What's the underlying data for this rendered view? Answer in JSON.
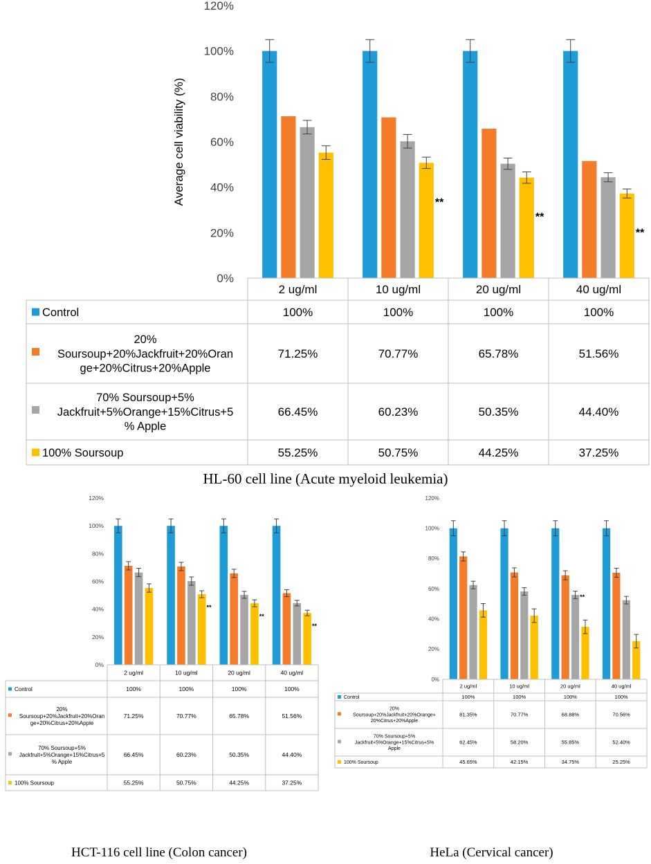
{
  "captions": {
    "main": "HL-60 cell line (Acute myeloid leukemia)",
    "left": "HCT-116 cell line (Colon cancer)",
    "right": "HeLa (Cervical cancer)"
  },
  "colors": {
    "control": "#1f9bd7",
    "blend20": "#f47b2a",
    "blend70": "#a6a6a6",
    "soursoup100": "#ffc000",
    "grid": "#bfbfbf",
    "error": "#404040"
  },
  "chart_data": [
    {
      "id": "hl60",
      "type": "bar",
      "title": "HL-60 cell line (Acute myeloid leukemia)",
      "ylabel": "Average cell viability (%)",
      "xlabel": "",
      "ylim": [
        0,
        120
      ],
      "yticks": [
        0,
        20,
        40,
        60,
        80,
        100,
        120
      ],
      "ytick_labels": [
        "0%",
        "20%",
        "40%",
        "60%",
        "80%",
        "100%",
        "120%"
      ],
      "categories": [
        "2 ug/ml",
        "10 ug/ml",
        "20 ug/ml",
        "40 ug/ml"
      ],
      "series": [
        {
          "name": "Control",
          "color_key": "control",
          "values": [
            100,
            100,
            100,
            100
          ],
          "error": [
            5,
            5,
            5,
            5
          ],
          "table_values": [
            "100%",
            "100%",
            "100%",
            "100%"
          ]
        },
        {
          "name": "20% Soursoup+20%Jackfruit+20%Orange+20%Citrus+20%Apple",
          "label_lines": [
            "20%",
            "Soursoup+20%Jackfruit+20%Oran",
            "ge+20%Citrus+20%Apple"
          ],
          "color_key": "blend20",
          "values": [
            71.25,
            70.77,
            65.78,
            51.56
          ],
          "error": [
            0,
            0,
            0,
            0
          ],
          "table_values": [
            "71.25%",
            "70.77%",
            "65.78%",
            "51.56%"
          ]
        },
        {
          "name": "70% Soursoup+5% Jackfruit+5%Orange+15%Citrus+5% Apple",
          "label_lines": [
            "70% Soursoup+5%",
            "Jackfruit+5%Orange+15%Citrus+5",
            "% Apple"
          ],
          "color_key": "blend70",
          "values": [
            66.45,
            60.23,
            50.35,
            44.4
          ],
          "error": [
            3,
            3,
            2.5,
            2
          ],
          "table_values": [
            "66.45%",
            "60.23%",
            "50.35%",
            "44.40%"
          ]
        },
        {
          "name": "100% Soursoup",
          "label_lines": [
            "100% Soursoup"
          ],
          "color_key": "soursoup100",
          "values": [
            55.25,
            50.75,
            44.25,
            37.25
          ],
          "error": [
            3,
            2.5,
            2.5,
            2
          ],
          "table_values": [
            "55.25%",
            "50.75%",
            "44.25%",
            "37.25%"
          ]
        }
      ],
      "annotations": [
        {
          "category": 1,
          "series": 3,
          "text": "**"
        },
        {
          "category": 2,
          "series": 3,
          "text": "**"
        },
        {
          "category": 3,
          "series": 3,
          "text": "**"
        }
      ]
    },
    {
      "id": "hct116",
      "type": "bar",
      "title": "HCT-116 cell line (Colon cancer)",
      "ylabel": "",
      "xlabel": "",
      "ylim": [
        0,
        120
      ],
      "yticks": [
        0,
        20,
        40,
        60,
        80,
        100,
        120
      ],
      "ytick_labels": [
        "0%",
        "20%",
        "40%",
        "60%",
        "80%",
        "100%",
        "120%"
      ],
      "categories": [
        "2 ug/ml",
        "10 ug/ml",
        "20 ug/ml",
        "40 ug/ml"
      ],
      "series": [
        {
          "name": "Control",
          "color_key": "control",
          "values": [
            100,
            100,
            100,
            100
          ],
          "error": [
            5,
            5,
            5,
            5
          ],
          "table_values": [
            "100%",
            "100%",
            "100%",
            "100%"
          ]
        },
        {
          "name": "20% Soursoup+20%Jackfruit+20%Orange+20%Citrus+20%Apple",
          "label_lines": [
            "20%",
            "Soursoup+20%Jackfruit+20%Oran",
            "ge+20%Citrus+20%Apple"
          ],
          "color_key": "blend20",
          "values": [
            71.25,
            70.77,
            65.78,
            51.56
          ],
          "error": [
            3,
            3,
            3,
            2.5
          ],
          "table_values": [
            "71.25%",
            "70.77%",
            "65.78%",
            "51.56%"
          ]
        },
        {
          "name": "70% Soursoup+5% Jackfruit+5%Orange+15%Citrus+5% Apple",
          "label_lines": [
            "70% Soursoup+5%",
            "Jackfruit+5%Orange+15%Citrus+5",
            "% Apple"
          ],
          "color_key": "blend70",
          "values": [
            66.45,
            60.23,
            50.35,
            44.4
          ],
          "error": [
            3,
            3,
            2.5,
            2
          ],
          "table_values": [
            "66.45%",
            "60.23%",
            "50.35%",
            "44.40%"
          ]
        },
        {
          "name": "100% Soursoup",
          "label_lines": [
            "100% Soursoup"
          ],
          "color_key": "soursoup100",
          "values": [
            55.25,
            50.75,
            44.25,
            37.25
          ],
          "error": [
            3,
            2.5,
            2.5,
            2
          ],
          "table_values": [
            "55.25%",
            "50.75%",
            "44.25%",
            "37.25%"
          ]
        }
      ],
      "annotations": [
        {
          "category": 1,
          "series": 3,
          "text": "**"
        },
        {
          "category": 2,
          "series": 3,
          "text": "**"
        },
        {
          "category": 3,
          "series": 3,
          "text": "**"
        }
      ]
    },
    {
      "id": "hela",
      "type": "bar",
      "title": "HeLa (Cervical cancer)",
      "ylabel": "",
      "xlabel": "",
      "ylim": [
        0,
        120
      ],
      "yticks": [
        0,
        20,
        40,
        60,
        80,
        100,
        120
      ],
      "ytick_labels": [
        "0%",
        "20%",
        "40%",
        "60%",
        "80%",
        "100%",
        "120%"
      ],
      "categories": [
        "2 ug/ml",
        "10 ug/ml",
        "20 ug/ml",
        "40 ug/ml"
      ],
      "series": [
        {
          "name": "Control",
          "color_key": "control",
          "values": [
            100,
            100,
            100,
            100
          ],
          "error": [
            5,
            5,
            5,
            5
          ],
          "table_values": [
            "100%",
            "100%",
            "100%",
            "100%"
          ]
        },
        {
          "name": "20% Soursoup+20%Jackfruit+20%Orange+20%Citrus+20%Apple",
          "label_lines": [
            "20%",
            "Soursoup+20%Jackfruit+20%Orange+",
            "20%Citrus+20%Apple"
          ],
          "color_key": "blend20",
          "values": [
            81.35,
            70.77,
            68.88,
            70.56
          ],
          "error": [
            3,
            3,
            3,
            3
          ],
          "table_values": [
            "81.35%",
            "70.77%",
            "68.88%",
            "70.56%"
          ]
        },
        {
          "name": "70% Soursoup+5% Jackfruit+5%Orange+15%Citrus+5% Apple",
          "label_lines": [
            "70% Soursoup+5%",
            "Jackfruit+5%Orange+15%Citrus+5%",
            "Apple"
          ],
          "color_key": "blend70",
          "values": [
            62.45,
            58.2,
            55.85,
            52.4
          ],
          "error": [
            2.5,
            2.5,
            2.5,
            2.5
          ],
          "table_values": [
            "62.45%",
            "58.20%",
            "55.85%",
            "52.40%"
          ]
        },
        {
          "name": "100% Soursoup",
          "label_lines": [
            "100% Soursoup"
          ],
          "color_key": "soursoup100",
          "values": [
            45.65,
            42.15,
            34.75,
            25.25
          ],
          "error": [
            4.5,
            4.5,
            4.5,
            4.5
          ],
          "table_values": [
            "45.65%",
            "42.15%",
            "34.75%",
            "25.25%"
          ]
        }
      ],
      "annotations": [
        {
          "category": 2,
          "series": 2,
          "text": "**"
        }
      ]
    }
  ]
}
